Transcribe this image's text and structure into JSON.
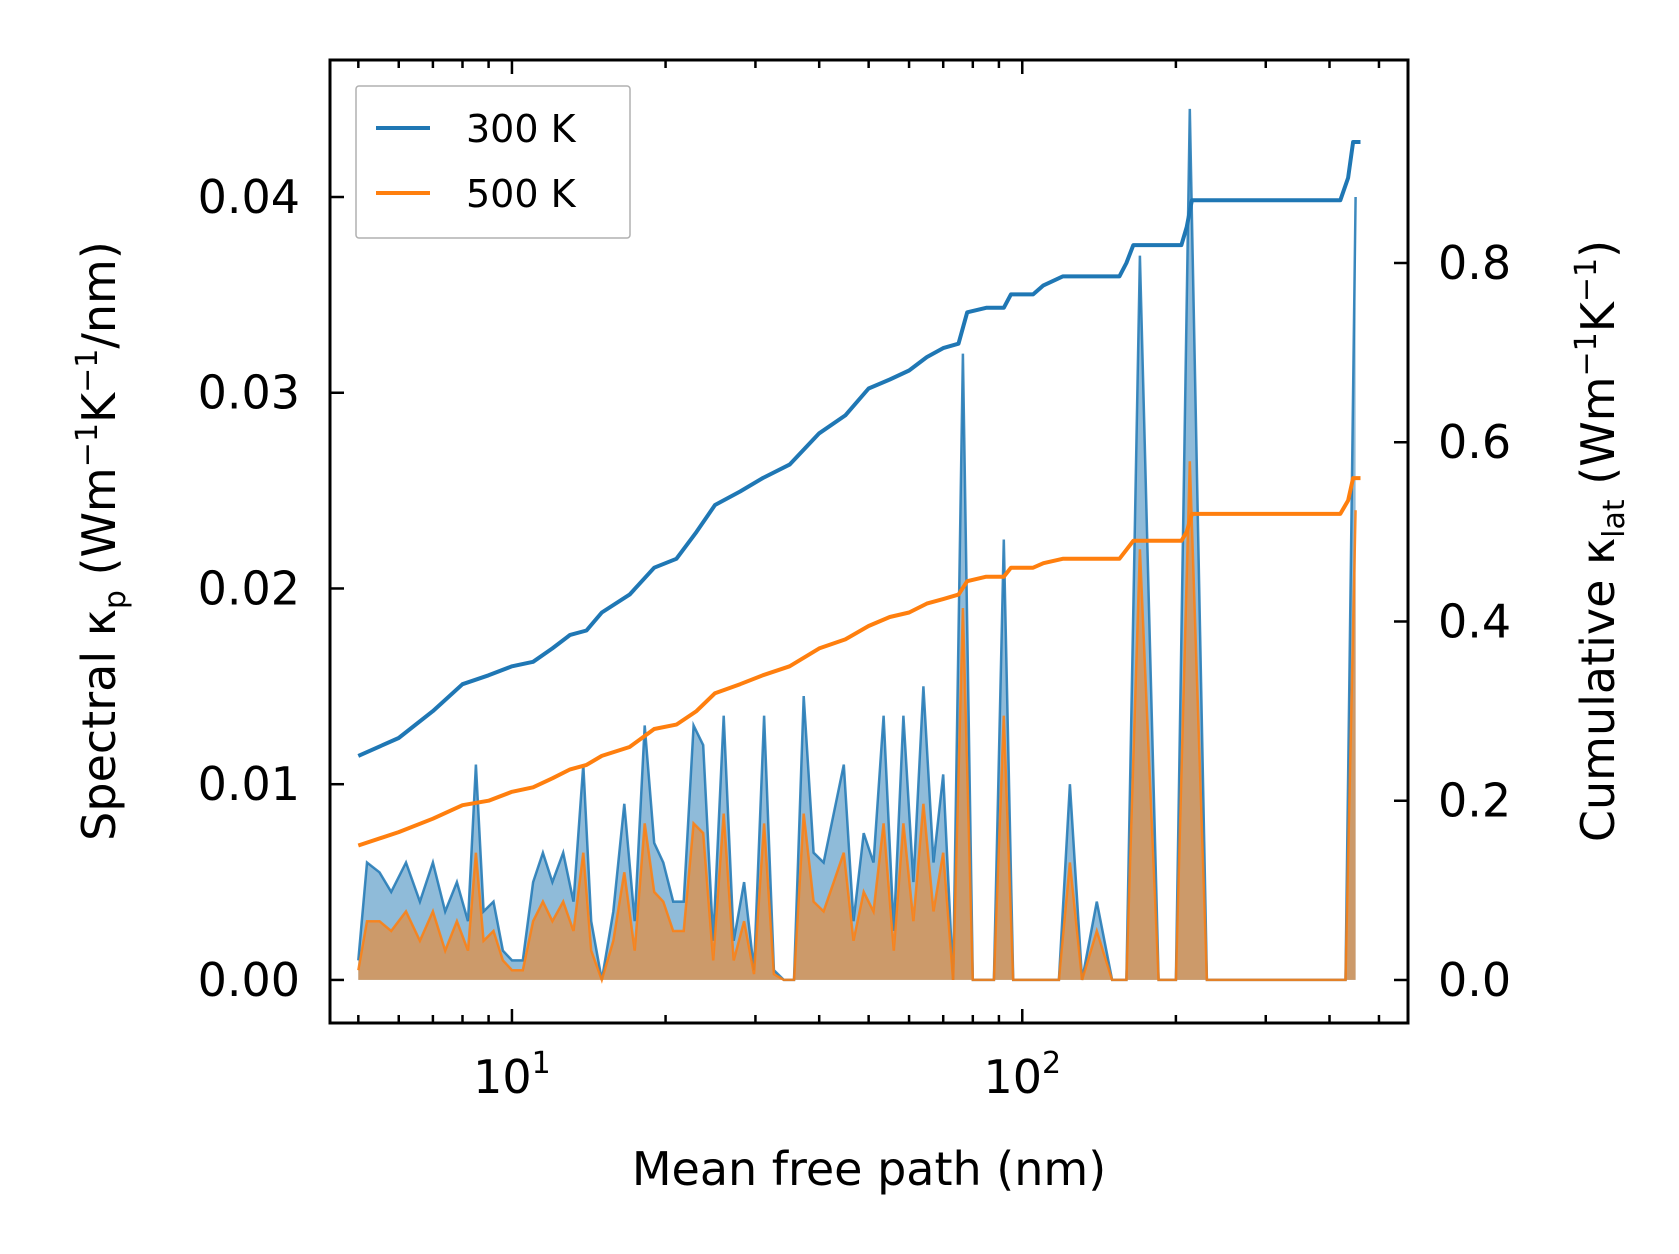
{
  "chart_data": {
    "type": "line",
    "xscale": "log",
    "xlabel": "Mean free path (nm)",
    "ylabel_left": {
      "main": "Spectral κ",
      "sub": "p",
      "unit_open": " (Wm",
      "sup1": "−1",
      "mid": "K",
      "sup2": "−1",
      "unit_close": "/nm)"
    },
    "ylabel_right": {
      "main": "Cumulative κ",
      "sub": "lat",
      "unit_open": " (Wm",
      "sup1": "−1",
      "mid": "K",
      "sup2": "−1",
      "unit_close": ")"
    },
    "xlim": [
      4.4,
      570
    ],
    "ylim_left": [
      -0.0022,
      0.047
    ],
    "ylim_right": [
      -0.048,
      1.0265
    ],
    "x_tick_labels": [
      {
        "value": 10,
        "base": "10",
        "exp": "1"
      },
      {
        "value": 100,
        "base": "10",
        "exp": "2"
      }
    ],
    "y_left_ticks": [
      "0.00",
      "0.01",
      "0.02",
      "0.03",
      "0.04"
    ],
    "y_right_ticks": [
      "0.0",
      "0.2",
      "0.4",
      "0.6",
      "0.8"
    ],
    "legend": {
      "position": "top-left",
      "entries": [
        "300 K",
        "500 K"
      ]
    },
    "colors": {
      "300 K": "#1f77b4",
      "500 K": "#ff7f0e"
    },
    "spectral_series": [
      {
        "name": "300 K",
        "x": [
          5.0,
          5.2,
          5.5,
          5.8,
          6.2,
          6.6,
          7.0,
          7.4,
          7.8,
          8.2,
          8.5,
          8.8,
          9.2,
          9.6,
          10.0,
          10.5,
          11.0,
          11.5,
          12.0,
          12.6,
          13.2,
          13.8,
          14.3,
          15.0,
          15.8,
          16.6,
          17.4,
          18.2,
          19.0,
          19.8,
          20.7,
          21.7,
          22.7,
          23.7,
          24.8,
          26.0,
          27.2,
          28.5,
          29.8,
          31.2,
          32.6,
          34.1,
          35.7,
          37.3,
          39.0,
          40.8,
          42.7,
          44.7,
          46.7,
          48.9,
          51.1,
          53.5,
          56.0,
          58.5,
          61.2,
          64.0,
          67.0,
          70.0,
          73.2,
          76.5,
          80.0,
          84.0,
          88.0,
          92.0,
          96.0,
          101.0,
          106.0,
          112.0,
          118.0,
          124.0,
          131.0,
          140.0,
          150.0,
          160.0,
          170.0,
          185.0,
          200.0,
          213.0,
          230.0,
          260.0,
          300.0,
          350.0,
          400.0,
          430.0,
          450.0
        ],
        "y": [
          0.001,
          0.006,
          0.0055,
          0.0045,
          0.006,
          0.004,
          0.006,
          0.0035,
          0.005,
          0.003,
          0.011,
          0.0035,
          0.004,
          0.0015,
          0.001,
          0.001,
          0.005,
          0.0065,
          0.005,
          0.0065,
          0.004,
          0.011,
          0.003,
          0.0,
          0.0035,
          0.009,
          0.003,
          0.013,
          0.007,
          0.006,
          0.004,
          0.004,
          0.013,
          0.012,
          0.002,
          0.0135,
          0.002,
          0.005,
          0.0005,
          0.0135,
          0.0005,
          0.0,
          0.0,
          0.0145,
          0.0065,
          0.006,
          0.0085,
          0.011,
          0.003,
          0.0075,
          0.006,
          0.0135,
          0.0025,
          0.0135,
          0.005,
          0.015,
          0.006,
          0.0105,
          0.0,
          0.032,
          0.0,
          0.0,
          0.0,
          0.0225,
          0.0,
          0.0,
          0.0,
          0.0,
          0.0,
          0.01,
          0.0,
          0.004,
          0.0,
          0.0,
          0.037,
          0.0,
          0.0,
          0.0445,
          0.0,
          0.0,
          0.0,
          0.0,
          0.0,
          0.0,
          0.04
        ]
      },
      {
        "name": "500 K",
        "x": [
          5.0,
          5.2,
          5.5,
          5.8,
          6.2,
          6.6,
          7.0,
          7.4,
          7.8,
          8.2,
          8.5,
          8.8,
          9.2,
          9.6,
          10.0,
          10.5,
          11.0,
          11.5,
          12.0,
          12.6,
          13.2,
          13.8,
          14.3,
          15.0,
          15.8,
          16.6,
          17.4,
          18.2,
          19.0,
          19.8,
          20.7,
          21.7,
          22.7,
          23.7,
          24.8,
          26.0,
          27.2,
          28.5,
          29.8,
          31.2,
          32.6,
          34.1,
          35.7,
          37.3,
          39.0,
          40.8,
          42.7,
          44.7,
          46.7,
          48.9,
          51.1,
          53.5,
          56.0,
          58.5,
          61.2,
          64.0,
          67.0,
          70.0,
          73.2,
          76.5,
          80.0,
          84.0,
          88.0,
          92.0,
          96.0,
          101.0,
          106.0,
          112.0,
          118.0,
          124.0,
          131.0,
          140.0,
          150.0,
          160.0,
          170.0,
          185.0,
          200.0,
          213.0,
          230.0,
          260.0,
          300.0,
          350.0,
          400.0,
          430.0,
          450.0
        ],
        "y": [
          0.0005,
          0.003,
          0.003,
          0.0025,
          0.0035,
          0.002,
          0.0035,
          0.0015,
          0.003,
          0.0015,
          0.0065,
          0.002,
          0.0025,
          0.001,
          0.0005,
          0.0005,
          0.003,
          0.004,
          0.003,
          0.004,
          0.0025,
          0.0065,
          0.0015,
          0.0,
          0.002,
          0.0055,
          0.0015,
          0.008,
          0.0045,
          0.004,
          0.0025,
          0.0025,
          0.008,
          0.0075,
          0.001,
          0.0085,
          0.001,
          0.003,
          0.0003,
          0.008,
          0.0003,
          0.0,
          0.0,
          0.0085,
          0.004,
          0.0035,
          0.005,
          0.0065,
          0.002,
          0.0045,
          0.0035,
          0.008,
          0.0015,
          0.008,
          0.003,
          0.009,
          0.0035,
          0.0065,
          0.0,
          0.019,
          0.0,
          0.0,
          0.0,
          0.0135,
          0.0,
          0.0,
          0.0,
          0.0,
          0.0,
          0.006,
          0.0,
          0.0025,
          0.0,
          0.0,
          0.022,
          0.0,
          0.0,
          0.0265,
          0.0,
          0.0,
          0.0,
          0.0,
          0.0,
          0.0,
          0.024
        ]
      }
    ],
    "cumulative_series": [
      {
        "name": "300 K",
        "x": [
          5.0,
          6.0,
          7.0,
          8.0,
          9.0,
          10.0,
          11.0,
          12.0,
          13.0,
          14.0,
          15.0,
          17.0,
          19.0,
          21.0,
          23.0,
          25.0,
          28.0,
          31.0,
          35.0,
          40.0,
          45.0,
          50.0,
          55.0,
          60.0,
          65.0,
          70.0,
          75.0,
          78.0,
          85.0,
          92.0,
          95.0,
          105.0,
          110.0,
          120.0,
          135.0,
          155.0,
          160.0,
          165.0,
          205.0,
          210.0,
          215.0,
          420.0,
          435.0,
          445.0,
          460.0
        ],
        "y": [
          0.25,
          0.27,
          0.3,
          0.33,
          0.34,
          0.35,
          0.355,
          0.37,
          0.385,
          0.39,
          0.41,
          0.43,
          0.46,
          0.47,
          0.5,
          0.53,
          0.545,
          0.56,
          0.575,
          0.61,
          0.63,
          0.66,
          0.67,
          0.68,
          0.695,
          0.705,
          0.71,
          0.745,
          0.75,
          0.75,
          0.765,
          0.765,
          0.775,
          0.785,
          0.785,
          0.785,
          0.8,
          0.82,
          0.82,
          0.84,
          0.87,
          0.87,
          0.895,
          0.935,
          0.935
        ]
      },
      {
        "name": "500 K",
        "x": [
          5.0,
          6.0,
          7.0,
          8.0,
          9.0,
          10.0,
          11.0,
          12.0,
          13.0,
          14.0,
          15.0,
          17.0,
          19.0,
          21.0,
          23.0,
          25.0,
          28.0,
          31.0,
          35.0,
          40.0,
          45.0,
          50.0,
          55.0,
          60.0,
          65.0,
          70.0,
          75.0,
          78.0,
          85.0,
          92.0,
          95.0,
          105.0,
          110.0,
          120.0,
          135.0,
          155.0,
          160.0,
          165.0,
          205.0,
          210.0,
          215.0,
          420.0,
          435.0,
          445.0,
          460.0
        ],
        "y": [
          0.15,
          0.165,
          0.18,
          0.195,
          0.2,
          0.21,
          0.215,
          0.225,
          0.235,
          0.24,
          0.25,
          0.26,
          0.28,
          0.285,
          0.3,
          0.32,
          0.33,
          0.34,
          0.35,
          0.37,
          0.38,
          0.395,
          0.405,
          0.41,
          0.42,
          0.425,
          0.43,
          0.445,
          0.45,
          0.45,
          0.46,
          0.46,
          0.465,
          0.47,
          0.47,
          0.47,
          0.48,
          0.49,
          0.49,
          0.5,
          0.52,
          0.52,
          0.535,
          0.56,
          0.56
        ]
      }
    ]
  }
}
